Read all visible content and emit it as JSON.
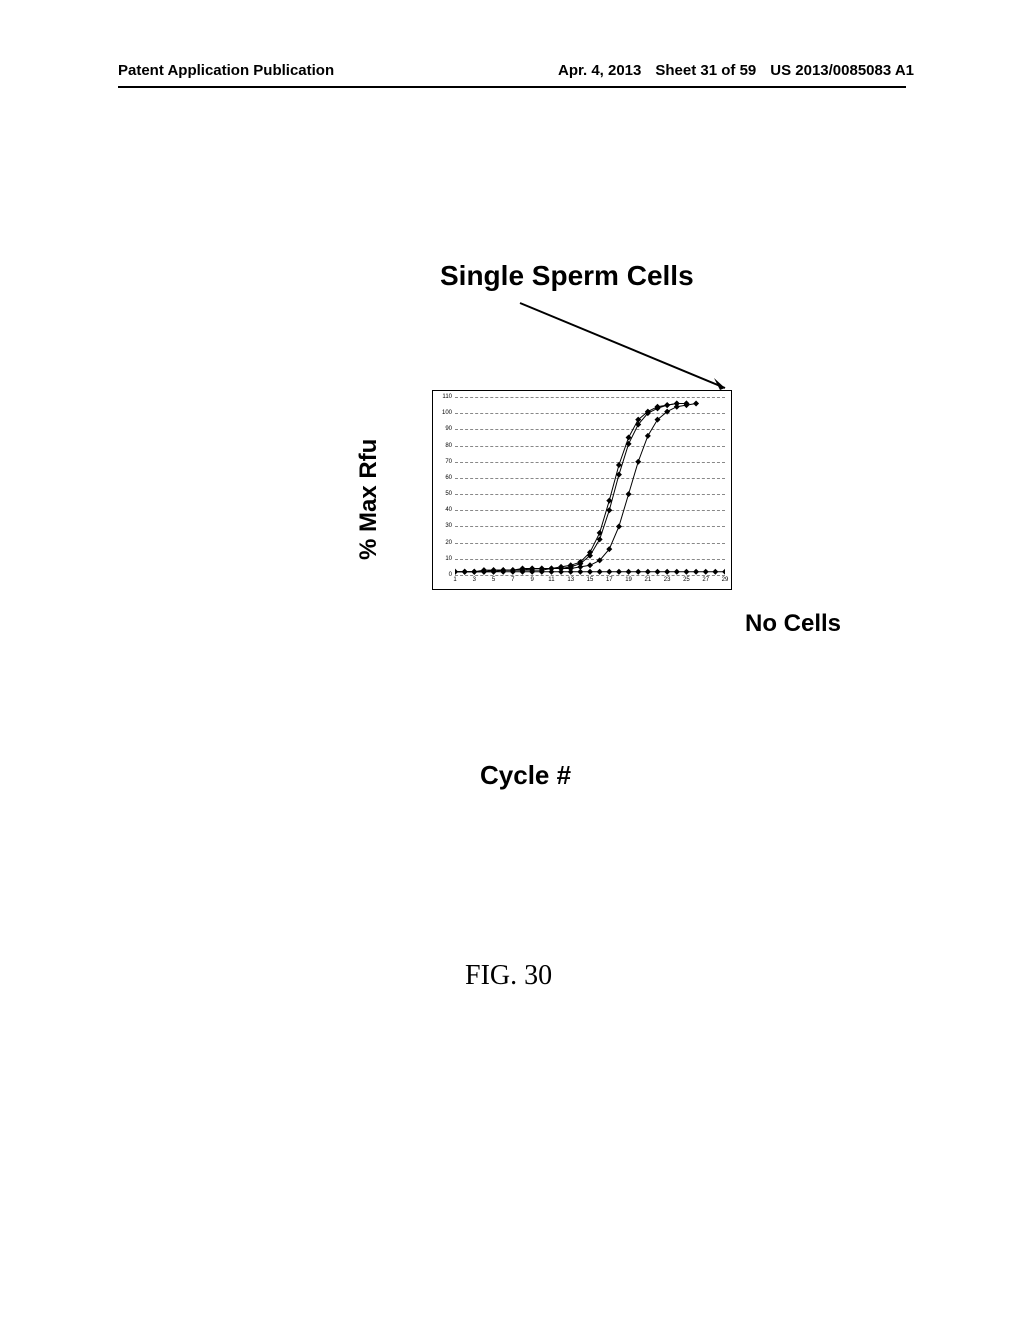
{
  "header": {
    "left": "Patent Application Publication",
    "date": "Apr. 4, 2013",
    "sheet": "Sheet 31 of 59",
    "pubnum": "US 2013/0085083 A1"
  },
  "chart": {
    "type": "line",
    "title": "Single Sperm Cells",
    "ylabel": "% Max Rfu",
    "xlabel": "Cycle #",
    "no_cells_label": "No Cells",
    "figure_label": "FIG. 30",
    "ylim": [
      0,
      110
    ],
    "ytick_step": 10,
    "yticks": [
      0,
      10,
      20,
      30,
      40,
      50,
      60,
      70,
      80,
      90,
      100,
      110
    ],
    "xlim": [
      1,
      29
    ],
    "xticks": [
      1,
      3,
      5,
      7,
      9,
      11,
      13,
      15,
      17,
      19,
      21,
      23,
      25,
      27,
      29
    ],
    "background_color": "#ffffff",
    "grid_color": "#888888",
    "line_color": "#000000",
    "line_width": 1.0,
    "marker_style": "diamond",
    "marker_size": 3,
    "series": [
      {
        "name": "sperm-1",
        "x": [
          1,
          2,
          3,
          4,
          5,
          6,
          7,
          8,
          9,
          10,
          11,
          12,
          13,
          14,
          15,
          16,
          17,
          18,
          19,
          20,
          21,
          22,
          23,
          24,
          25
        ],
        "y": [
          2,
          2,
          2,
          3,
          3,
          3,
          3,
          4,
          4,
          4,
          4,
          5,
          6,
          8,
          14,
          26,
          46,
          68,
          85,
          96,
          101,
          104,
          105,
          106,
          106
        ]
      },
      {
        "name": "sperm-2",
        "x": [
          1,
          2,
          3,
          4,
          5,
          6,
          7,
          8,
          9,
          10,
          11,
          12,
          13,
          14,
          15,
          16,
          17,
          18,
          19,
          20,
          21,
          22,
          23,
          24,
          25
        ],
        "y": [
          2,
          2,
          2,
          2,
          3,
          3,
          3,
          3,
          4,
          4,
          4,
          4,
          5,
          7,
          12,
          22,
          40,
          62,
          81,
          93,
          100,
          103,
          105,
          106,
          106
        ]
      },
      {
        "name": "sperm-3",
        "x": [
          1,
          2,
          3,
          4,
          5,
          6,
          7,
          8,
          9,
          10,
          11,
          12,
          13,
          14,
          15,
          16,
          17,
          18,
          19,
          20,
          21,
          22,
          23,
          24,
          25,
          26
        ],
        "y": [
          2,
          2,
          2,
          2,
          2,
          3,
          3,
          3,
          3,
          3,
          4,
          4,
          4,
          5,
          6,
          9,
          16,
          30,
          50,
          70,
          86,
          96,
          101,
          104,
          105,
          106
        ]
      },
      {
        "name": "no-cells",
        "x": [
          1,
          2,
          3,
          4,
          5,
          6,
          7,
          8,
          9,
          10,
          11,
          12,
          13,
          14,
          15,
          16,
          17,
          18,
          19,
          20,
          21,
          22,
          23,
          24,
          25,
          26,
          27,
          28,
          29
        ],
        "y": [
          2,
          2,
          2,
          2,
          2,
          2,
          2,
          2,
          2,
          2,
          2,
          2,
          2,
          2,
          2,
          2,
          2,
          2,
          2,
          2,
          2,
          2,
          2,
          2,
          2,
          2,
          2,
          2,
          2
        ]
      }
    ]
  }
}
